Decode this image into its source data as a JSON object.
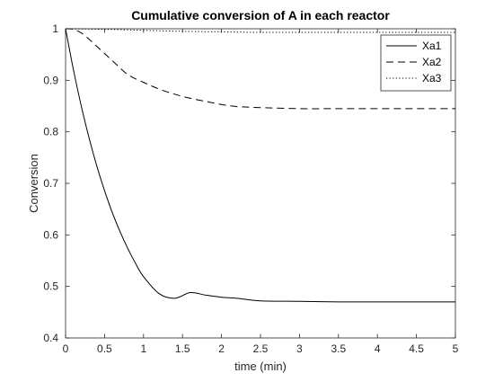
{
  "chart_data": {
    "type": "line",
    "title": "Cumulative conversion of A in each reactor",
    "xlabel": "time (min)",
    "ylabel": "Conversion",
    "xlim": [
      0,
      5
    ],
    "ylim": [
      0.4,
      1
    ],
    "xticks": [
      0,
      0.5,
      1,
      1.5,
      2,
      2.5,
      3,
      3.5,
      4,
      4.5,
      5
    ],
    "xtick_labels": [
      "0",
      "0.5",
      "1",
      "1.5",
      "2",
      "2.5",
      "3",
      "3.5",
      "4",
      "4.5",
      "5"
    ],
    "yticks": [
      0.4,
      0.5,
      0.6,
      0.7,
      0.8,
      0.9,
      1
    ],
    "ytick_labels": [
      "0.4",
      "0.5",
      "0.6",
      "0.7",
      "0.8",
      "0.9",
      "1"
    ],
    "grid": false,
    "legend_position": "top-right",
    "series": [
      {
        "name": "Xa1",
        "line_style": "solid",
        "color": "#000000",
        "x": [
          0,
          0.1,
          0.2,
          0.3,
          0.4,
          0.5,
          0.6,
          0.7,
          0.8,
          0.9,
          1,
          1.2,
          1.4,
          1.6,
          1.8,
          2,
          2.2,
          2.5,
          3,
          3.5,
          4,
          4.5,
          5
        ],
        "y": [
          1,
          0.921,
          0.851,
          0.789,
          0.734,
          0.686,
          0.643,
          0.606,
          0.573,
          0.544,
          0.519,
          0.486,
          0.477,
          0.488,
          0.483,
          0.479,
          0.477,
          0.472,
          0.471,
          0.47,
          0.47,
          0.47,
          0.47
        ]
      },
      {
        "name": "Xa2",
        "line_style": "dashed",
        "color": "#000000",
        "x": [
          0,
          0.1,
          0.2,
          0.3,
          0.4,
          0.5,
          0.6,
          0.8,
          1,
          1.2,
          1.4,
          1.6,
          1.8,
          2,
          2.2,
          2.5,
          3,
          3.5,
          4,
          4.5,
          5
        ],
        "y": [
          1,
          0.999,
          0.992,
          0.98,
          0.966,
          0.952,
          0.938,
          0.911,
          0.896,
          0.883,
          0.873,
          0.865,
          0.859,
          0.853,
          0.849,
          0.847,
          0.845,
          0.845,
          0.845,
          0.845,
          0.845
        ]
      },
      {
        "name": "Xa3",
        "line_style": "dotted",
        "color": "#000000",
        "x": [
          0,
          0.5,
          1,
          1.5,
          2,
          2.5,
          3,
          3.5,
          4,
          4.5,
          5
        ],
        "y": [
          1,
          0.999,
          0.997,
          0.995,
          0.994,
          0.993,
          0.993,
          0.993,
          0.993,
          0.993,
          0.993
        ]
      }
    ]
  }
}
